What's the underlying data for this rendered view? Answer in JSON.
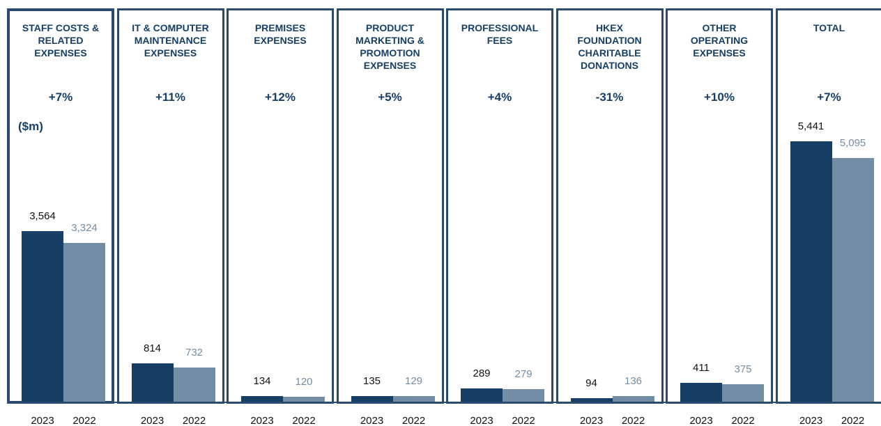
{
  "chart_data": {
    "type": "bar",
    "unit": "($m)",
    "categories": [
      "STAFF COSTS &\nRELATED\nEXPENSES",
      "IT & COMPUTER\nMAINTENANCE\nEXPENSES",
      "PREMISES\nEXPENSES",
      "PRODUCT\nMARKETING &\nPROMOTION\nEXPENSES",
      "PROFESSIONAL\nFEES",
      "HKEX\nFOUNDATION\nCHARITABLE\nDONATIONS",
      "OTHER\nOPERATING\nEXPENSES",
      "TOTAL"
    ],
    "changes": [
      "+7%",
      "+11%",
      "+12%",
      "+5%",
      "+4%",
      "-31%",
      "+10%",
      "+7%"
    ],
    "series": [
      {
        "name": "2023",
        "color": "#173f66",
        "values": [
          3564,
          814,
          134,
          135,
          289,
          94,
          411,
          5441
        ],
        "value_labels": [
          "3,564",
          "814",
          "134",
          "135",
          "289",
          "94",
          "411",
          "5,441"
        ]
      },
      {
        "name": "2022",
        "color": "#738da5",
        "values": [
          3324,
          732,
          120,
          129,
          279,
          136,
          375,
          5095
        ],
        "value_labels": [
          "3,324",
          "732",
          "120",
          "129",
          "279",
          "136",
          "375",
          "5,095"
        ]
      }
    ]
  }
}
